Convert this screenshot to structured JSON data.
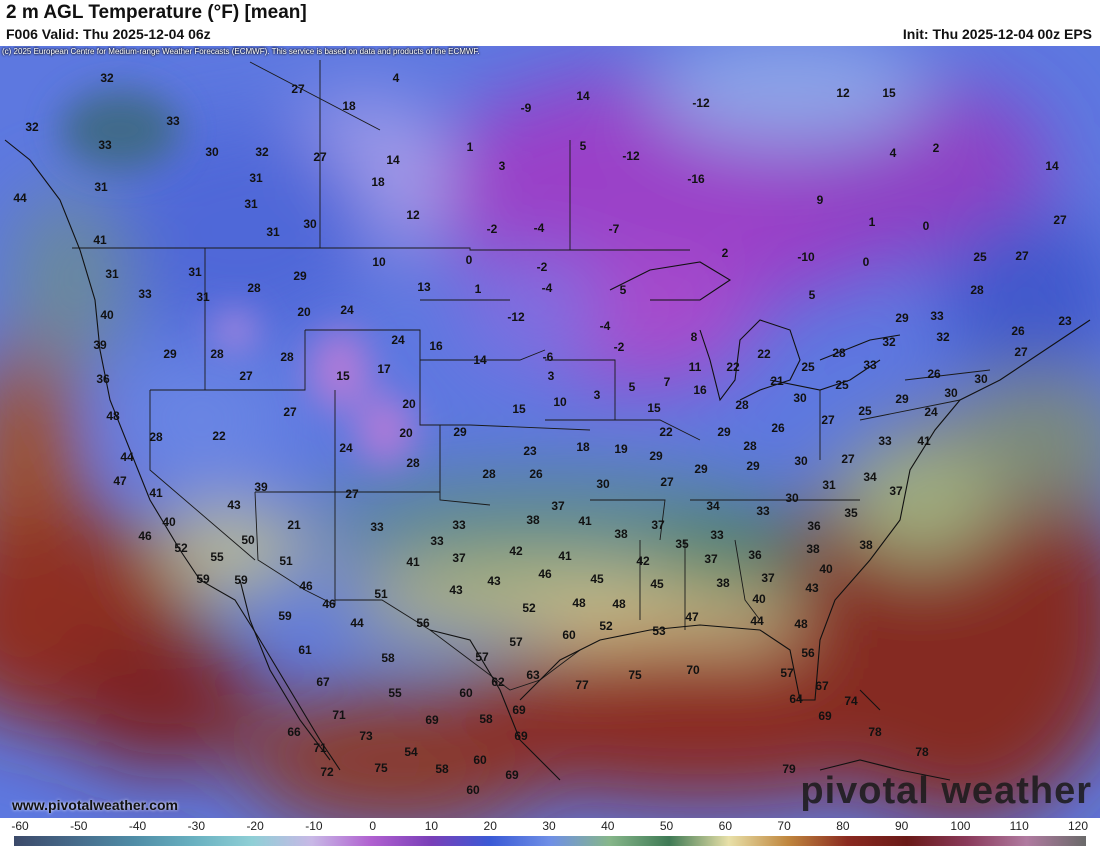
{
  "header": {
    "title": "2 m AGL Temperature (°F) [mean]",
    "valid": "F006 Valid: Thu 2025-12-04 06z",
    "init": "Init: Thu 2025-12-04 00z EPS"
  },
  "copyright": "(c) 2025 European Centre for Medium-range Weather Forecasts (ECMWF). This service is based on data and products of the ECMWF.",
  "footer": {
    "site": "www.pivotalweather.com",
    "brand": "pivotal weather"
  },
  "colorbar": {
    "ticks": [
      "-60",
      "-50",
      "-40",
      "-30",
      "-20",
      "-10",
      "0",
      "10",
      "20",
      "30",
      "40",
      "50",
      "60",
      "70",
      "80",
      "90",
      "100",
      "110",
      "120"
    ],
    "colors": [
      "#3c4a6a",
      "#466a8a",
      "#4f8ca6",
      "#68b0c0",
      "#8fcfd6",
      "#c8b8e6",
      "#b060d0",
      "#7a3fb8",
      "#3a5ad6",
      "#6f8fe6",
      "#86b68a",
      "#3f7a55",
      "#e8e0a8",
      "#c0863e",
      "#8a2a20",
      "#6a1a18",
      "#8a3a5a",
      "#b07aa0",
      "#6a6a6a"
    ]
  },
  "temps": [
    [
      "32",
      107,
      82
    ],
    [
      "4",
      396,
      82
    ],
    [
      "27",
      298,
      93
    ],
    [
      "18",
      349,
      110
    ],
    [
      "14",
      583,
      100
    ],
    [
      "-12",
      701,
      107
    ],
    [
      "12",
      843,
      97
    ],
    [
      "15",
      889,
      97
    ],
    [
      "33",
      173,
      125
    ],
    [
      "-9",
      526,
      112
    ],
    [
      "1",
      470,
      151
    ],
    [
      "5",
      583,
      150
    ],
    [
      "-12",
      631,
      160
    ],
    [
      "-16",
      696,
      183
    ],
    [
      "4",
      893,
      157
    ],
    [
      "2",
      936,
      152
    ],
    [
      "14",
      1052,
      170
    ],
    [
      "32",
      32,
      131
    ],
    [
      "33",
      105,
      149
    ],
    [
      "30",
      212,
      156
    ],
    [
      "32",
      262,
      156
    ],
    [
      "27",
      320,
      161
    ],
    [
      "14",
      393,
      164
    ],
    [
      "3",
      502,
      170
    ],
    [
      "31",
      101,
      191
    ],
    [
      "31",
      256,
      182
    ],
    [
      "18",
      378,
      186
    ],
    [
      "9",
      820,
      204
    ],
    [
      "44",
      20,
      202
    ],
    [
      "31",
      251,
      208
    ],
    [
      "12",
      413,
      219
    ],
    [
      "1",
      872,
      226
    ],
    [
      "0",
      926,
      230
    ],
    [
      "27",
      1060,
      224
    ],
    [
      "31",
      273,
      236
    ],
    [
      "30",
      310,
      228
    ],
    [
      "-2",
      492,
      233
    ],
    [
      "-4",
      539,
      232
    ],
    [
      "-7",
      614,
      233
    ],
    [
      "41",
      100,
      244
    ],
    [
      "10",
      379,
      266
    ],
    [
      "0",
      469,
      264
    ],
    [
      "-2",
      542,
      271
    ],
    [
      "2",
      725,
      257
    ],
    [
      "-10",
      806,
      261
    ],
    [
      "0",
      866,
      266
    ],
    [
      "25",
      980,
      261
    ],
    [
      "27",
      1022,
      260
    ],
    [
      "31",
      195,
      276
    ],
    [
      "31",
      112,
      278
    ],
    [
      "29",
      300,
      280
    ],
    [
      "13",
      424,
      291
    ],
    [
      "1",
      478,
      293
    ],
    [
      "-4",
      547,
      292
    ],
    [
      "5",
      623,
      294
    ],
    [
      "5",
      812,
      299
    ],
    [
      "28",
      977,
      294
    ],
    [
      "33",
      145,
      298
    ],
    [
      "31",
      203,
      301
    ],
    [
      "28",
      254,
      292
    ],
    [
      "20",
      304,
      316
    ],
    [
      "24",
      347,
      314
    ],
    [
      "-12",
      516,
      321
    ],
    [
      "-4",
      605,
      330
    ],
    [
      "40",
      107,
      319
    ],
    [
      "29",
      902,
      322
    ],
    [
      "33",
      937,
      320
    ],
    [
      "26",
      1018,
      335
    ],
    [
      "23",
      1065,
      325
    ],
    [
      "39",
      100,
      349
    ],
    [
      "29",
      170,
      358
    ],
    [
      "28",
      217,
      358
    ],
    [
      "28",
      287,
      361
    ],
    [
      "16",
      436,
      350
    ],
    [
      "24",
      398,
      344
    ],
    [
      "8",
      694,
      341
    ],
    [
      "32",
      943,
      341
    ],
    [
      "32",
      889,
      346
    ],
    [
      "27",
      1021,
      356
    ],
    [
      "36",
      103,
      383
    ],
    [
      "27",
      246,
      380
    ],
    [
      "15",
      343,
      380
    ],
    [
      "17",
      384,
      373
    ],
    [
      "14",
      480,
      364
    ],
    [
      "-6",
      548,
      361
    ],
    [
      "-2",
      619,
      351
    ],
    [
      "22",
      764,
      358
    ],
    [
      "28",
      839,
      357
    ],
    [
      "11",
      695,
      371
    ],
    [
      "22",
      733,
      371
    ],
    [
      "33",
      870,
      369
    ],
    [
      "25",
      808,
      371
    ],
    [
      "26",
      934,
      378
    ],
    [
      "30",
      981,
      383
    ],
    [
      "3",
      551,
      380
    ],
    [
      "3",
      597,
      399
    ],
    [
      "5",
      632,
      391
    ],
    [
      "7",
      667,
      386
    ],
    [
      "16",
      700,
      394
    ],
    [
      "21",
      777,
      385
    ],
    [
      "25",
      842,
      389
    ],
    [
      "30",
      951,
      397
    ],
    [
      "48",
      113,
      420
    ],
    [
      "27",
      290,
      416
    ],
    [
      "20",
      409,
      408
    ],
    [
      "10",
      560,
      406
    ],
    [
      "15",
      519,
      413
    ],
    [
      "15",
      654,
      412
    ],
    [
      "28",
      742,
      409
    ],
    [
      "30",
      800,
      402
    ],
    [
      "29",
      902,
      403
    ],
    [
      "24",
      931,
      416
    ],
    [
      "28",
      156,
      441
    ],
    [
      "22",
      219,
      440
    ],
    [
      "20",
      406,
      437
    ],
    [
      "29",
      460,
      436
    ],
    [
      "22",
      666,
      436
    ],
    [
      "29",
      724,
      436
    ],
    [
      "26",
      778,
      432
    ],
    [
      "27",
      828,
      424
    ],
    [
      "25",
      865,
      415
    ],
    [
      "41",
      924,
      445
    ],
    [
      "44",
      127,
      461
    ],
    [
      "24",
      346,
      452
    ],
    [
      "23",
      530,
      455
    ],
    [
      "18",
      583,
      451
    ],
    [
      "19",
      621,
      453
    ],
    [
      "28",
      750,
      450
    ],
    [
      "33",
      885,
      445
    ],
    [
      "47",
      120,
      485
    ],
    [
      "28",
      413,
      467
    ],
    [
      "28",
      489,
      478
    ],
    [
      "26",
      536,
      478
    ],
    [
      "29",
      656,
      460
    ],
    [
      "29",
      701,
      473
    ],
    [
      "29",
      753,
      470
    ],
    [
      "30",
      801,
      465
    ],
    [
      "27",
      848,
      463
    ],
    [
      "41",
      156,
      497
    ],
    [
      "39",
      261,
      491
    ],
    [
      "27",
      352,
      498
    ],
    [
      "30",
      603,
      488
    ],
    [
      "27",
      667,
      486
    ],
    [
      "31",
      829,
      489
    ],
    [
      "34",
      870,
      481
    ],
    [
      "37",
      896,
      495
    ],
    [
      "40",
      169,
      526
    ],
    [
      "43",
      234,
      509
    ],
    [
      "21",
      294,
      529
    ],
    [
      "37",
      558,
      510
    ],
    [
      "34",
      713,
      510
    ],
    [
      "33",
      763,
      515
    ],
    [
      "30",
      792,
      502
    ],
    [
      "35",
      851,
      517
    ],
    [
      "46",
      145,
      540
    ],
    [
      "52",
      181,
      552
    ],
    [
      "50",
      248,
      544
    ],
    [
      "33",
      377,
      531
    ],
    [
      "33",
      459,
      529
    ],
    [
      "38",
      533,
      524
    ],
    [
      "41",
      585,
      525
    ],
    [
      "37",
      658,
      529
    ],
    [
      "36",
      814,
      530
    ],
    [
      "55",
      217,
      561
    ],
    [
      "51",
      286,
      565
    ],
    [
      "33",
      437,
      545
    ],
    [
      "38",
      621,
      538
    ],
    [
      "35",
      682,
      548
    ],
    [
      "33",
      717,
      539
    ],
    [
      "36",
      755,
      559
    ],
    [
      "38",
      866,
      549
    ],
    [
      "59",
      203,
      583
    ],
    [
      "59",
      241,
      584
    ],
    [
      "42",
      516,
      555
    ],
    [
      "41",
      565,
      560
    ],
    [
      "37",
      711,
      563
    ],
    [
      "38",
      813,
      553
    ],
    [
      "40",
      826,
      573
    ],
    [
      "46",
      306,
      590
    ],
    [
      "41",
      413,
      566
    ],
    [
      "37",
      459,
      562
    ],
    [
      "43",
      494,
      585
    ],
    [
      "46",
      545,
      578
    ],
    [
      "45",
      597,
      583
    ],
    [
      "42",
      643,
      565
    ],
    [
      "37",
      768,
      582
    ],
    [
      "43",
      812,
      592
    ],
    [
      "46",
      329,
      608
    ],
    [
      "51",
      381,
      598
    ],
    [
      "43",
      456,
      594
    ],
    [
      "45",
      657,
      588
    ],
    [
      "38",
      723,
      587
    ],
    [
      "40",
      759,
      603
    ],
    [
      "59",
      285,
      620
    ],
    [
      "44",
      357,
      627
    ],
    [
      "56",
      423,
      627
    ],
    [
      "52",
      529,
      612
    ],
    [
      "48",
      579,
      607
    ],
    [
      "48",
      619,
      608
    ],
    [
      "47",
      692,
      621
    ],
    [
      "44",
      757,
      625
    ],
    [
      "48",
      801,
      628
    ],
    [
      "61",
      305,
      654
    ],
    [
      "58",
      388,
      662
    ],
    [
      "57",
      516,
      646
    ],
    [
      "60",
      569,
      639
    ],
    [
      "52",
      606,
      630
    ],
    [
      "53",
      659,
      635
    ],
    [
      "67",
      323,
      686
    ],
    [
      "55",
      395,
      697
    ],
    [
      "57",
      482,
      661
    ],
    [
      "62",
      498,
      686
    ],
    [
      "63",
      533,
      679
    ],
    [
      "77",
      582,
      689
    ],
    [
      "75",
      635,
      679
    ],
    [
      "70",
      693,
      674
    ],
    [
      "56",
      808,
      657
    ],
    [
      "71",
      339,
      719
    ],
    [
      "60",
      466,
      697
    ],
    [
      "58",
      486,
      723
    ],
    [
      "69",
      519,
      714
    ],
    [
      "57",
      787,
      677
    ],
    [
      "67",
      822,
      690
    ],
    [
      "64",
      796,
      703
    ],
    [
      "74",
      851,
      705
    ],
    [
      "66",
      294,
      736
    ],
    [
      "73",
      366,
      740
    ],
    [
      "69",
      432,
      724
    ],
    [
      "69",
      521,
      740
    ],
    [
      "69",
      825,
      720
    ],
    [
      "78",
      875,
      736
    ],
    [
      "71",
      320,
      752
    ],
    [
      "54",
      411,
      756
    ],
    [
      "60",
      480,
      764
    ],
    [
      "78",
      922,
      756
    ],
    [
      "72",
      327,
      776
    ],
    [
      "75",
      381,
      772
    ],
    [
      "58",
      442,
      773
    ],
    [
      "69",
      512,
      779
    ],
    [
      "79",
      789,
      773
    ],
    [
      "60",
      473,
      794
    ]
  ]
}
